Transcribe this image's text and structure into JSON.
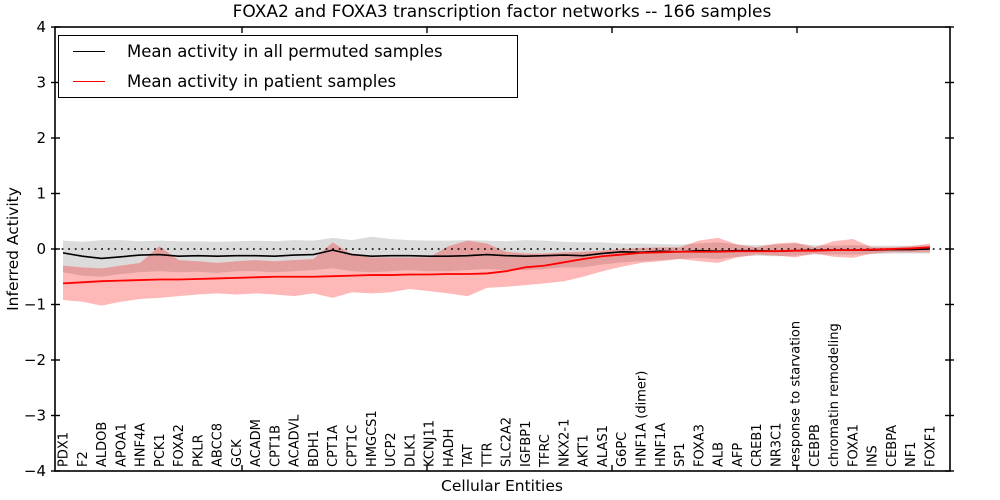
{
  "figure": {
    "title": "FOXA2 and FOXA3 transcription factor networks -- 166 samples",
    "xlabel": "Cellular Entities",
    "ylabel": "Inferred Activity"
  },
  "legend": {
    "items": [
      {
        "label": "Mean activity in all permuted samples",
        "color": "#000000"
      },
      {
        "label": "Mean activity in patient samples",
        "color": "#ff0000"
      }
    ]
  },
  "chart_data": {
    "type": "line",
    "title": "FOXA2 and FOXA3 transcription factor networks -- 166 samples",
    "xlabel": "Cellular Entities",
    "ylabel": "Inferred Activity",
    "ylim": [
      -4,
      4
    ],
    "ytick_labels": [
      "4",
      "3",
      "2",
      "1",
      "0",
      "−1",
      "−2",
      "−3",
      "−4"
    ],
    "ytick_values": [
      4,
      3,
      2,
      1,
      0,
      -1,
      -2,
      -3,
      -4
    ],
    "grid": false,
    "legend_position": "upper left",
    "zero_reference_line": {
      "y": 0,
      "style": "dotted",
      "color": "#000000"
    },
    "categories": [
      "PDX1",
      "F2",
      "ALDOB",
      "APOA1",
      "HNF4A",
      "PCK1",
      "FOXA2",
      "PKLR",
      "ABCC8",
      "GCK",
      "ACADM",
      "CPT1B",
      "ACADVL",
      "BDH1",
      "CPT1A",
      "CPT1C",
      "HMGCS1",
      "UCP2",
      "DLK1",
      "KCNJ11",
      "HADH",
      "TAT",
      "TTR",
      "SLC2A2",
      "IGFBP1",
      "TFRC",
      "NKX2-1",
      "AKT1",
      "ALAS1",
      "G6PC",
      "HNF1A (dimer)",
      "HNF1A",
      "SP1",
      "FOXA3",
      "ALB",
      "AFP",
      "CREB1",
      "NR3C1",
      "response to starvation",
      "CEBPB",
      "chromatin remodeling",
      "FOXA1",
      "INS",
      "CEBPA",
      "NF1",
      "FOXF1"
    ],
    "series": [
      {
        "name": "Mean activity in all permuted samples",
        "color": "#000000",
        "band_color": "rgba(0,0,0,0.14)",
        "values": [
          -0.07,
          -0.13,
          -0.17,
          -0.14,
          -0.11,
          -0.1,
          -0.13,
          -0.12,
          -0.13,
          -0.12,
          -0.12,
          -0.13,
          -0.11,
          -0.1,
          -0.02,
          -0.1,
          -0.13,
          -0.12,
          -0.12,
          -0.13,
          -0.13,
          -0.12,
          -0.1,
          -0.12,
          -0.13,
          -0.12,
          -0.11,
          -0.12,
          -0.08,
          -0.05,
          -0.06,
          -0.04,
          -0.05,
          -0.03,
          -0.04,
          -0.03,
          -0.03,
          -0.04,
          -0.03,
          -0.02,
          -0.02,
          -0.02,
          -0.02,
          -0.01,
          -0.01,
          0.0
        ],
        "band_upper": [
          0.15,
          0.13,
          0.16,
          0.16,
          0.14,
          0.15,
          0.14,
          0.14,
          0.13,
          0.14,
          0.15,
          0.14,
          0.16,
          0.15,
          0.2,
          0.16,
          0.22,
          0.18,
          0.16,
          0.15,
          0.15,
          0.16,
          0.15,
          0.14,
          0.16,
          0.15,
          0.13,
          0.12,
          0.12,
          0.1,
          0.1,
          0.09,
          0.08,
          0.1,
          0.12,
          0.08,
          0.07,
          0.08,
          0.1,
          0.07,
          0.06,
          0.07,
          0.06,
          0.06,
          0.06,
          0.06
        ],
        "band_lower": [
          -0.42,
          -0.48,
          -0.5,
          -0.45,
          -0.42,
          -0.4,
          -0.42,
          -0.41,
          -0.43,
          -0.4,
          -0.4,
          -0.42,
          -0.4,
          -0.38,
          -0.35,
          -0.4,
          -0.42,
          -0.4,
          -0.38,
          -0.4,
          -0.4,
          -0.38,
          -0.36,
          -0.38,
          -0.38,
          -0.36,
          -0.33,
          -0.33,
          -0.28,
          -0.24,
          -0.22,
          -0.2,
          -0.18,
          -0.16,
          -0.18,
          -0.14,
          -0.12,
          -0.13,
          -0.12,
          -0.1,
          -0.1,
          -0.1,
          -0.09,
          -0.08,
          -0.08,
          -0.08
        ]
      },
      {
        "name": "Mean activity in patient samples",
        "color": "#ff0000",
        "band_color": "rgba(255,0,0,0.28)",
        "values": [
          -0.62,
          -0.6,
          -0.58,
          -0.57,
          -0.56,
          -0.55,
          -0.55,
          -0.54,
          -0.53,
          -0.52,
          -0.51,
          -0.5,
          -0.5,
          -0.5,
          -0.49,
          -0.48,
          -0.47,
          -0.47,
          -0.46,
          -0.46,
          -0.45,
          -0.45,
          -0.44,
          -0.4,
          -0.33,
          -0.3,
          -0.24,
          -0.18,
          -0.13,
          -0.1,
          -0.07,
          -0.06,
          -0.05,
          -0.05,
          -0.05,
          -0.04,
          -0.04,
          -0.04,
          -0.03,
          -0.03,
          -0.02,
          -0.02,
          -0.01,
          0.0,
          0.01,
          0.03
        ],
        "band_upper": [
          -0.3,
          -0.33,
          -0.35,
          -0.3,
          -0.25,
          0.05,
          -0.2,
          -0.22,
          -0.25,
          -0.22,
          -0.2,
          -0.22,
          -0.2,
          -0.18,
          0.12,
          -0.1,
          -0.15,
          -0.15,
          -0.15,
          -0.15,
          0.05,
          0.15,
          0.1,
          -0.05,
          -0.08,
          -0.08,
          -0.06,
          -0.05,
          -0.03,
          0.0,
          0.02,
          0.03,
          0.03,
          0.15,
          0.2,
          0.08,
          0.03,
          0.1,
          0.12,
          0.03,
          0.14,
          0.18,
          0.03,
          0.03,
          0.05,
          0.1
        ],
        "band_lower": [
          -0.92,
          -0.95,
          -1.02,
          -0.95,
          -0.9,
          -0.88,
          -0.85,
          -0.82,
          -0.8,
          -0.82,
          -0.8,
          -0.82,
          -0.85,
          -0.8,
          -0.88,
          -0.78,
          -0.8,
          -0.78,
          -0.72,
          -0.76,
          -0.8,
          -0.85,
          -0.7,
          -0.68,
          -0.65,
          -0.62,
          -0.58,
          -0.5,
          -0.4,
          -0.32,
          -0.25,
          -0.22,
          -0.18,
          -0.22,
          -0.25,
          -0.15,
          -0.1,
          -0.12,
          -0.15,
          -0.08,
          -0.14,
          -0.16,
          -0.08,
          -0.06,
          -0.06,
          -0.06
        ]
      }
    ]
  }
}
